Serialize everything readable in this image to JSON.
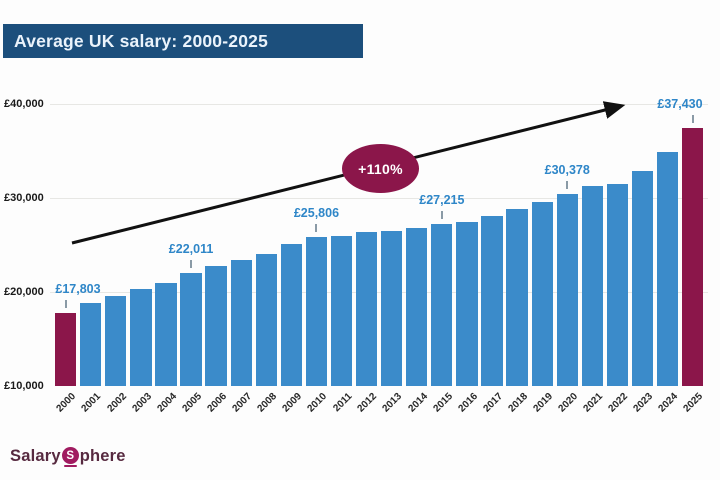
{
  "header": {
    "title": "Average UK salary: 2000-2025"
  },
  "chart_data": {
    "type": "bar",
    "title": "Average UK salary: 2000-2025",
    "categories": [
      "2000",
      "2001",
      "2002",
      "2003",
      "2004",
      "2005",
      "2006",
      "2007",
      "2008",
      "2009",
      "2010",
      "2011",
      "2012",
      "2013",
      "2014",
      "2015",
      "2016",
      "2017",
      "2018",
      "2019",
      "2020",
      "2021",
      "2022",
      "2023",
      "2024",
      "2025"
    ],
    "values": [
      17803,
      18800,
      19600,
      20300,
      21000,
      22011,
      22800,
      23400,
      24000,
      25100,
      25806,
      25950,
      26350,
      26450,
      26850,
      27215,
      27500,
      28100,
      28800,
      29600,
      30378,
      31300,
      31500,
      32900,
      34900,
      37430
    ],
    "highlighted_categories": [
      "2000",
      "2025"
    ],
    "callouts": [
      {
        "year": "2000",
        "label": "£17,803"
      },
      {
        "year": "2005",
        "label": "£22,011"
      },
      {
        "year": "2010",
        "label": "£25,806"
      },
      {
        "year": "2015",
        "label": "£27,215"
      },
      {
        "year": "2020",
        "label": "£30,378"
      },
      {
        "year": "2025",
        "label": "£37,430"
      }
    ],
    "annotation": {
      "label": "+110%",
      "shape": "ellipse",
      "trend_arrow": true
    },
    "yticks": [
      {
        "value": 10000,
        "label": "£10,000"
      },
      {
        "value": 20000,
        "label": "£20,000"
      },
      {
        "value": 30000,
        "label": "£30,000"
      },
      {
        "value": 40000,
        "label": "£40,000"
      }
    ],
    "ylim": [
      10000,
      40000
    ],
    "xlabel": "",
    "ylabel": "",
    "grid": true,
    "legend_position": "none",
    "colors": {
      "bar": "#3b8bca",
      "highlight_bar": "#8b164a",
      "callout_text": "#2e86c8",
      "banner_bg": "#1c4f7c",
      "banner_text": "#eaf3fb",
      "annotation_bg": "#8b164a",
      "annotation_text": "#ffffff",
      "arrow": "#111111"
    }
  },
  "footer": {
    "logo": {
      "part1": "Salary",
      "circle_letter": "S",
      "part2": "phere"
    }
  }
}
